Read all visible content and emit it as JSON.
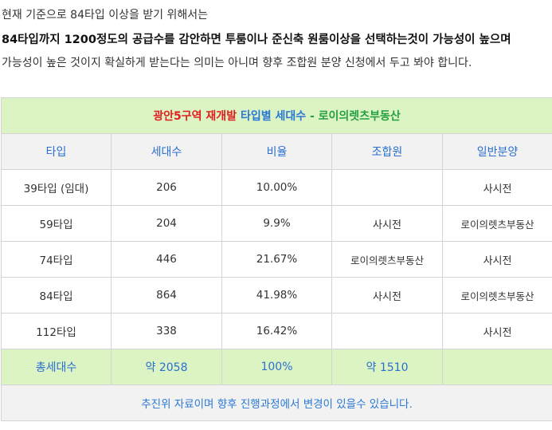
{
  "intro": {
    "line1": "현재 기준으로 84타입 이상을 받기 위해서는",
    "line2": "84타입까지 1200정도의 공급수를 감안하면 투룸이나 준신축 원룸이상을 선택하는것이 가능성이 높으며",
    "line3": "가능성이 높은 것이지 확실하게 받는다는 의미는 아니며 향후 조합원 분양 신청에서 두고 봐야 합니다."
  },
  "table": {
    "title": {
      "part1": "광안5구역 재개발",
      "part2": "타입별 세대수",
      "part3": "- 로이의렛츠부동산"
    },
    "headers": [
      "타입",
      "세대수",
      "비율",
      "조합원",
      "일반분양"
    ],
    "rows": [
      {
        "type": "39타입 (임대)",
        "units": "206",
        "ratio": "10.00%",
        "member": "",
        "general": "사시전"
      },
      {
        "type": "59타입",
        "units": "204",
        "ratio": "9.9%",
        "member": "사시전",
        "general": "로이의렛츠부동산"
      },
      {
        "type": "74타입",
        "units": "446",
        "ratio": "21.67%",
        "member": "로이의렛츠부동산",
        "general": "사시전"
      },
      {
        "type": "84타입",
        "units": "864",
        "ratio": "41.98%",
        "member": "사시전",
        "general": "로이의렛츠부동산"
      },
      {
        "type": "112타입",
        "units": "338",
        "ratio": "16.42%",
        "member": "",
        "general": "사시전"
      }
    ],
    "total": {
      "label": "총세대수",
      "units": "약 2058",
      "ratio": "100%",
      "member": "약 1510",
      "general": ""
    },
    "note": "추진위 자료이며 향후 진행과정에서 변경이 있을수 있습니다."
  }
}
